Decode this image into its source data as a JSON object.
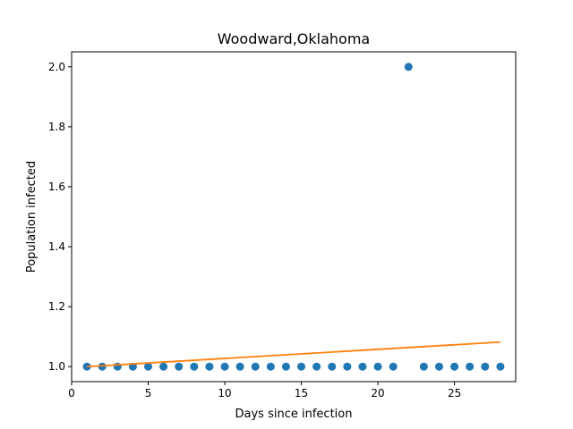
{
  "chart_data": {
    "type": "scatter",
    "title": "Woodward,Oklahoma",
    "xlabel": "Days since infection",
    "ylabel": "Population infected",
    "xlim": [
      0,
      29
    ],
    "ylim": [
      0.95,
      2.05
    ],
    "xticks": [
      0,
      5,
      10,
      15,
      20,
      25
    ],
    "yticks": [
      1.0,
      1.2,
      1.4,
      1.6,
      1.8,
      2.0
    ],
    "ytick_labels": [
      "1.0",
      "1.2",
      "1.4",
      "1.6",
      "1.8",
      "2.0"
    ],
    "grid": false,
    "series": [
      {
        "kind": "scatter",
        "color": "#1f77b4",
        "x": [
          1,
          2,
          3,
          4,
          5,
          6,
          7,
          8,
          9,
          10,
          11,
          12,
          13,
          14,
          15,
          16,
          17,
          18,
          19,
          20,
          21,
          22,
          23,
          24,
          25,
          26,
          27,
          28
        ],
        "y": [
          1,
          1,
          1,
          1,
          1,
          1,
          1,
          1,
          1,
          1,
          1,
          1,
          1,
          1,
          1,
          1,
          1,
          1,
          1,
          1,
          1,
          2,
          1,
          1,
          1,
          1,
          1,
          1
        ]
      },
      {
        "kind": "line",
        "color": "#ff7f0e",
        "x": [
          1,
          28
        ],
        "y": [
          1.0,
          1.082
        ]
      }
    ]
  }
}
